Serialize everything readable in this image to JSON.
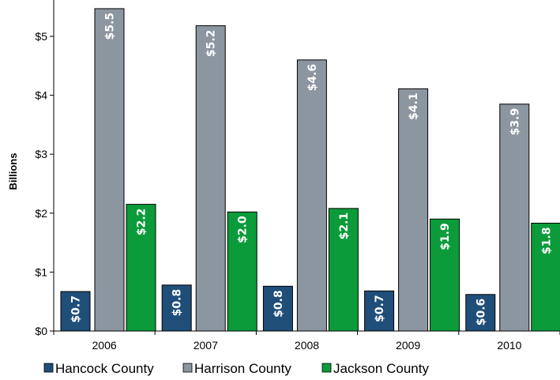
{
  "chart_data": {
    "type": "bar",
    "title": "",
    "xlabel": "",
    "ylabel": "Billions",
    "categories": [
      "2006",
      "2007",
      "2008",
      "2009",
      "2010"
    ],
    "yticks": [
      "$0",
      "$1",
      "$2",
      "$3",
      "$4",
      "$5"
    ],
    "ylim": [
      0,
      5.5
    ],
    "grid": false,
    "legend_position": "bottom",
    "series": [
      {
        "name": "Hancock County",
        "color": "#1f4e79",
        "values": [
          0.67,
          0.78,
          0.76,
          0.68,
          0.62
        ],
        "labels": [
          "$0.7",
          "$0.8",
          "$0.8",
          "$0.7",
          "$0.6"
        ]
      },
      {
        "name": "Harrison County",
        "color": "#8c96a0",
        "values": [
          5.47,
          5.18,
          4.6,
          4.11,
          3.85
        ],
        "labels": [
          "$5.5",
          "$5.2",
          "$4.6",
          "$4.1",
          "$3.9"
        ]
      },
      {
        "name": "Jackson County",
        "color": "#0c9b3a",
        "values": [
          2.15,
          2.02,
          2.08,
          1.9,
          1.83
        ],
        "labels": [
          "$2.2",
          "$2.0",
          "$2.1",
          "$1.9",
          "$1.8"
        ]
      }
    ]
  }
}
